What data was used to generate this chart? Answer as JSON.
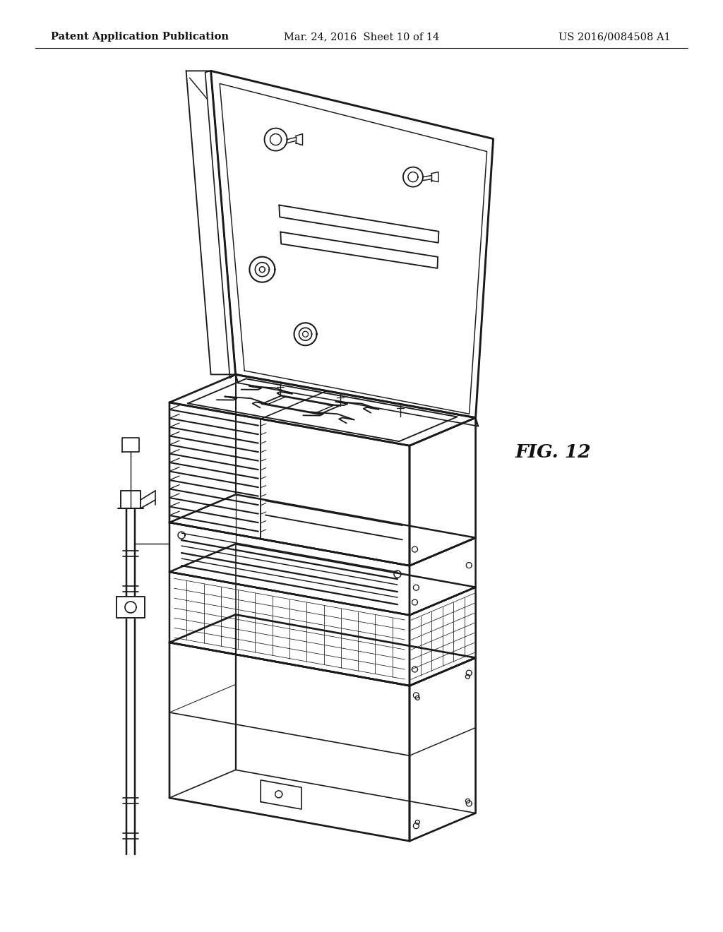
{
  "background_color": "#ffffff",
  "header_left": "Patent Application Publication",
  "header_center": "Mar. 24, 2016  Sheet 10 of 14",
  "header_right": "US 2016/0084508 A1",
  "fig_label": "FIG. 12",
  "header_fontsize": 10.5,
  "line_color": "#1a1a1a",
  "line_width": 1.5
}
